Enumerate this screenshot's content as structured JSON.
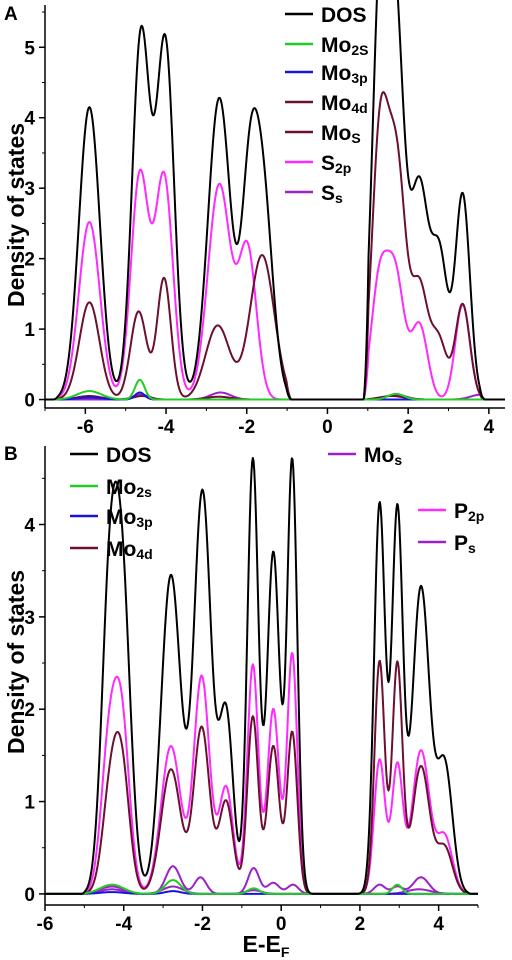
{
  "chart_data": [
    {
      "panel_label": "A",
      "type": "line",
      "ylabel": "Density of states",
      "xlim": [
        -7,
        4.4
      ],
      "ylim": [
        -0.12,
        5.6
      ],
      "xticks": [
        "-6",
        "-4",
        "-2",
        "0",
        "2",
        "4"
      ],
      "yticks": [
        "0",
        "1",
        "2",
        "3",
        "4",
        "5"
      ],
      "legend_placement": "top-center",
      "series": [
        {
          "name": "DOS",
          "color": "#000000",
          "base": 0,
          "cutoffs": [
            -6.8,
            -0.9,
            0.9,
            3.9
          ],
          "peaks": [
            [
              -5.9,
              4.15,
              0.26
            ],
            [
              -4.62,
              5.17,
              0.22
            ],
            [
              -4.02,
              5.05,
              0.22
            ],
            [
              -2.68,
              4.28,
              0.28
            ],
            [
              -1.95,
              2.35,
              0.2
            ],
            [
              -1.62,
              3.02,
              0.25
            ],
            [
              1.3,
              5.42,
              0.2
            ],
            [
              1.68,
              5.32,
              0.22
            ],
            [
              2.28,
              2.95,
              0.22
            ],
            [
              2.78,
              2.0,
              0.2
            ],
            [
              3.35,
              2.9,
              0.18
            ]
          ]
        },
        {
          "name": "Mo2s",
          "color": "#22cc22",
          "base": 0,
          "cutoffs": [
            -6.8,
            -0.9,
            0.9,
            3.9
          ],
          "peaks": [
            [
              -5.9,
              0.12,
              0.3
            ],
            [
              -4.65,
              0.28,
              0.12
            ],
            [
              1.7,
              0.08,
              0.2
            ]
          ]
        },
        {
          "name": "Mo3p",
          "color": "#1515dd",
          "base": 0,
          "cutoffs": [
            -6.8,
            -0.9,
            0.9,
            3.9
          ],
          "peaks": [
            [
              -5.9,
              0.03,
              0.3
            ],
            [
              -4.65,
              0.1,
              0.12
            ]
          ]
        },
        {
          "name": "Mo4d",
          "color": "#6b1030",
          "base": 0,
          "cutoffs": [
            -6.8,
            -0.9,
            0.9,
            3.9
          ],
          "peaks": [
            [
              -5.9,
              1.38,
              0.25
            ],
            [
              -4.68,
              1.25,
              0.2
            ],
            [
              -4.05,
              1.72,
              0.17
            ],
            [
              -2.72,
              1.05,
              0.3
            ],
            [
              -1.62,
              2.05,
              0.3
            ],
            [
              1.3,
              3.65,
              0.2
            ],
            [
              1.72,
              3.28,
              0.22
            ],
            [
              2.28,
              1.55,
              0.2
            ],
            [
              2.75,
              0.85,
              0.2
            ],
            [
              3.35,
              1.35,
              0.18
            ]
          ]
        },
        {
          "name": "Mos",
          "color": "#6b1030",
          "base": 0,
          "cutoffs": [
            -6.8,
            -0.9,
            0.9,
            3.9
          ],
          "peaks": [
            [
              -5.9,
              0.05,
              0.3
            ],
            [
              -4.6,
              0.05,
              0.2
            ],
            [
              -2.7,
              0.04,
              0.3
            ],
            [
              1.6,
              0.05,
              0.3
            ]
          ]
        },
        {
          "name": "S2p",
          "color": "#ff2aff",
          "base": 0,
          "cutoffs": [
            -6.8,
            -0.9,
            0.9,
            3.9
          ],
          "peaks": [
            [
              -5.9,
              2.52,
              0.26
            ],
            [
              -4.65,
              3.18,
              0.22
            ],
            [
              -4.05,
              3.15,
              0.22
            ],
            [
              -2.68,
              3.05,
              0.28
            ],
            [
              -1.98,
              2.1,
              0.22
            ],
            [
              1.28,
              1.58,
              0.2
            ],
            [
              1.68,
              1.75,
              0.22
            ],
            [
              2.28,
              1.05,
              0.2
            ],
            [
              3.35,
              1.35,
              0.18
            ]
          ]
        },
        {
          "name": "Ss",
          "color": "#9b22c8",
          "base": 0,
          "cutoffs": [
            -6.8,
            -0.9,
            0.9,
            3.9
          ],
          "peaks": [
            [
              -4.62,
              0.07,
              0.2
            ],
            [
              -2.65,
              0.1,
              0.25
            ],
            [
              1.7,
              0.07,
              0.25
            ],
            [
              3.8,
              0.07,
              0.25
            ]
          ]
        }
      ]
    },
    {
      "panel_label": "B",
      "type": "line",
      "ylabel": "Density of states",
      "xlabel": "E-EF",
      "xlim": [
        -6,
        5
      ],
      "ylim": [
        -0.12,
        4.85
      ],
      "xticks": [
        "-6",
        "-4",
        "-2",
        "0",
        "2",
        "4"
      ],
      "yticks": [
        "0",
        "1",
        "2",
        "3",
        "4"
      ],
      "legend_placement": "top",
      "series": [
        {
          "name": "DOS",
          "color": "#000000",
          "base": 0,
          "cutoffs": [
            -5.1,
            0.9,
            1.8,
            4.85
          ],
          "peaks": [
            [
              -4.38,
              2.75,
              0.2
            ],
            [
              -4.05,
              3.32,
              0.22
            ],
            [
              -2.8,
              3.45,
              0.25
            ],
            [
              -2.0,
              4.35,
              0.22
            ],
            [
              -1.4,
              1.95,
              0.18
            ],
            [
              -0.72,
              4.7,
              0.14
            ],
            [
              -0.2,
              3.7,
              0.16
            ],
            [
              0.28,
              4.68,
              0.13
            ],
            [
              2.5,
              4.22,
              0.14
            ],
            [
              2.95,
              4.12,
              0.14
            ],
            [
              3.55,
              3.32,
              0.22
            ],
            [
              4.15,
              1.4,
              0.2
            ]
          ]
        },
        {
          "name": "Mo2s",
          "color": "#22cc22",
          "base": 0,
          "cutoffs": [
            -5.1,
            0.9,
            1.8,
            4.85
          ],
          "peaks": [
            [
              -4.3,
              0.1,
              0.3
            ],
            [
              -2.75,
              0.15,
              0.2
            ],
            [
              -0.7,
              0.06,
              0.15
            ],
            [
              2.95,
              0.1,
              0.12
            ]
          ]
        },
        {
          "name": "Mo3p",
          "color": "#1515dd",
          "base": 0,
          "cutoffs": [
            -5.1,
            0.9,
            1.8,
            4.85
          ],
          "peaks": [
            [
              -4.3,
              0.02,
              0.3
            ],
            [
              -2.75,
              0.03,
              0.2
            ]
          ]
        },
        {
          "name": "Mo4d",
          "color": "#6b1030",
          "base": 0,
          "cutoffs": [
            -5.1,
            0.9,
            1.8,
            4.85
          ],
          "peaks": [
            [
              -4.35,
              1.0,
              0.2
            ],
            [
              -4.05,
              1.3,
              0.2
            ],
            [
              -2.8,
              1.35,
              0.25
            ],
            [
              -2.02,
              1.8,
              0.2
            ],
            [
              -1.4,
              1.0,
              0.18
            ],
            [
              -0.72,
              1.92,
              0.14
            ],
            [
              -0.2,
              1.6,
              0.15
            ],
            [
              0.28,
              1.75,
              0.13
            ],
            [
              2.5,
              2.52,
              0.13
            ],
            [
              2.95,
              2.48,
              0.13
            ],
            [
              3.55,
              1.38,
              0.22
            ],
            [
              4.15,
              0.5,
              0.2
            ]
          ]
        },
        {
          "name": "Mos",
          "color": "#9b22c8",
          "base": 0,
          "cutoffs": [
            -5.1,
            0.9,
            1.8,
            4.85
          ],
          "peaks": [
            [
              -4.3,
              0.05,
              0.3
            ],
            [
              -2.75,
              0.08,
              0.25
            ],
            [
              -0.7,
              0.04,
              0.2
            ],
            [
              3.5,
              0.05,
              0.3
            ]
          ]
        },
        {
          "name": "P2p",
          "color": "#ff2aff",
          "base": 0,
          "cutoffs": [
            -5.1,
            0.9,
            1.8,
            4.85
          ],
          "peaks": [
            [
              -4.38,
              1.5,
              0.2
            ],
            [
              -4.05,
              1.78,
              0.2
            ],
            [
              -2.8,
              1.6,
              0.25
            ],
            [
              -2.02,
              2.35,
              0.2
            ],
            [
              -1.4,
              1.15,
              0.18
            ],
            [
              -0.72,
              2.48,
              0.14
            ],
            [
              -0.2,
              2.0,
              0.15
            ],
            [
              0.28,
              2.6,
              0.13
            ],
            [
              2.5,
              1.45,
              0.14
            ],
            [
              2.95,
              1.38,
              0.14
            ],
            [
              3.55,
              1.55,
              0.22
            ],
            [
              4.15,
              0.62,
              0.2
            ]
          ]
        },
        {
          "name": "Ps",
          "color": "#9b22c8",
          "base": 0,
          "cutoffs": [
            -5.1,
            0.9,
            1.8,
            4.85
          ],
          "peaks": [
            [
              -4.3,
              0.08,
              0.3
            ],
            [
              -2.75,
              0.3,
              0.18
            ],
            [
              -2.05,
              0.18,
              0.15
            ],
            [
              -0.7,
              0.28,
              0.14
            ],
            [
              -0.2,
              0.12,
              0.15
            ],
            [
              0.3,
              0.1,
              0.14
            ],
            [
              2.5,
              0.1,
              0.14
            ],
            [
              2.95,
              0.08,
              0.14
            ],
            [
              3.55,
              0.18,
              0.2
            ]
          ]
        }
      ]
    }
  ],
  "legends": {
    "A": [
      {
        "base": "DOS",
        "sub": "",
        "color": "#000000"
      },
      {
        "base": "Mo",
        "sub": "2S",
        "color": "#22cc22"
      },
      {
        "base": "Mo",
        "sub": "3p",
        "color": "#1515dd"
      },
      {
        "base": "Mo",
        "sub": "4d",
        "color": "#6b1030"
      },
      {
        "base": "Mo",
        "sub": "S",
        "color": "#6b1030"
      },
      {
        "base": "S",
        "sub": "2p",
        "color": "#ff2aff"
      },
      {
        "base": "S",
        "sub": "s",
        "color": "#9b22c8"
      }
    ],
    "B": [
      {
        "base": "DOS",
        "sub": "",
        "color": "#000000"
      },
      {
        "base": "Mo",
        "sub": "2s",
        "color": "#22cc22"
      },
      {
        "base": "Mo",
        "sub": "3p",
        "color": "#1515dd"
      },
      {
        "base": "Mo",
        "sub": "4d",
        "color": "#6b1030"
      },
      {
        "base": "Mo",
        "sub": "s",
        "color": "#9b22c8"
      },
      {
        "base": "P",
        "sub": "2p",
        "color": "#ff2aff"
      },
      {
        "base": "P",
        "sub": "s",
        "color": "#9b22c8"
      }
    ]
  },
  "text": {
    "panel_a": "A",
    "panel_b": "B",
    "ylabel_a": "Density of states",
    "ylabel_b": "Density of states",
    "xlabel_base": "E-E",
    "xlabel_sub": "F"
  }
}
